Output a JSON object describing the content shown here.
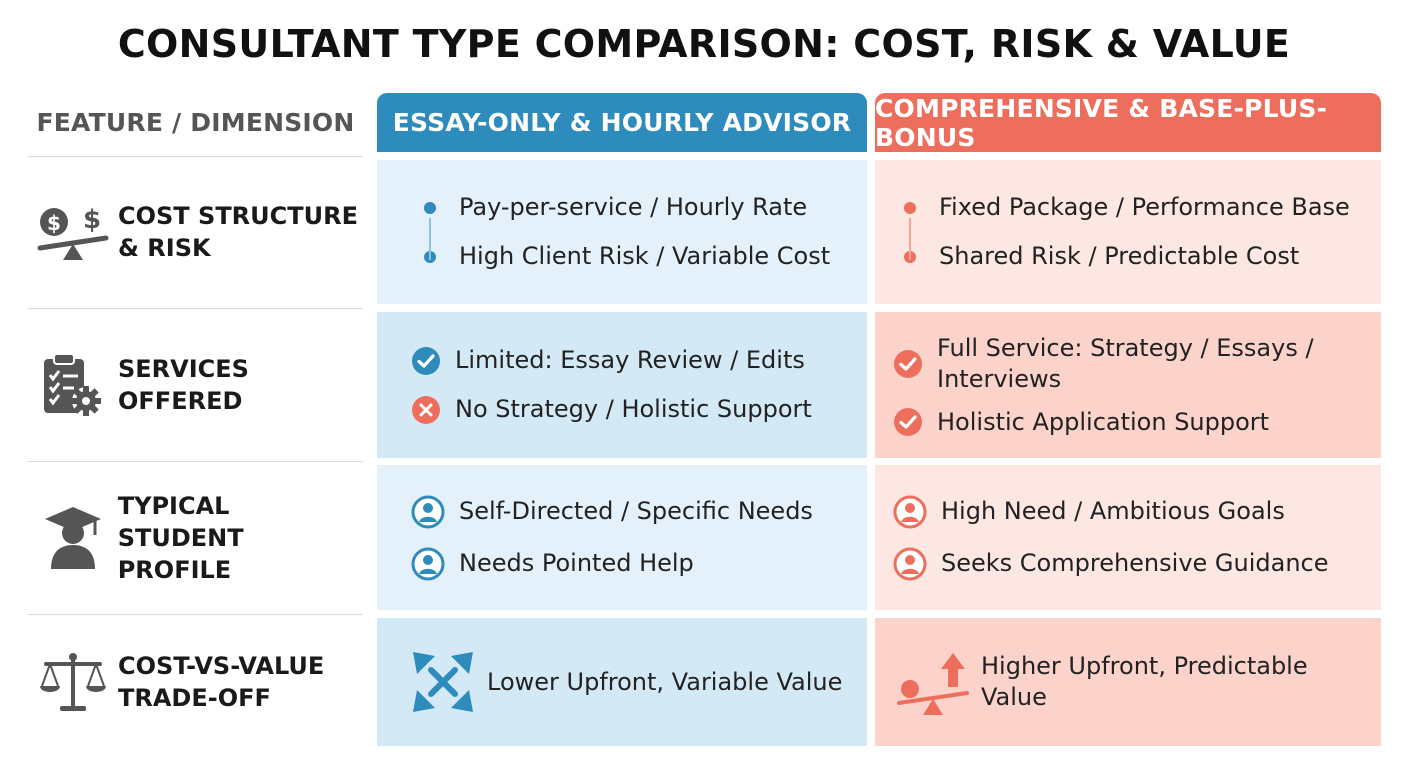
{
  "title": "CONSULTANT TYPE COMPARISON: COST, RISK & VALUE",
  "feature_header": "FEATURE / DIMENSION",
  "columns": {
    "left": "ESSAY-ONLY & HOURLY ADVISOR",
    "right": "COMPREHENSIVE & BASE-PLUS-BONUS"
  },
  "colors": {
    "blue": "#2d8cbc",
    "red": "#ee6e5d",
    "icon_gray": "#555555"
  },
  "rows": [
    {
      "label_line1": "COST STRUCTURE",
      "label_line2": "& RISK",
      "icon": "dollar-seesaw-icon",
      "left": [
        "Pay-per-service / Hourly Rate",
        "High Client Risk / Variable Cost"
      ],
      "right": [
        "Fixed Package / Performance Base",
        "Shared Risk / Predictable Cost"
      ]
    },
    {
      "label_line1": "SERVICES",
      "label_line2": "OFFERED",
      "icon": "clipboard-gear-icon",
      "left": [
        "Limited: Essay Review / Edits",
        "No Strategy / Holistic Support"
      ],
      "right": [
        "Full Service: Strategy / Essays /",
        "Interviews",
        "Holistic Application Support"
      ]
    },
    {
      "label_line1": "TYPICAL STUDENT",
      "label_line2": "PROFILE",
      "icon": "graduate-icon",
      "left": [
        "Self-Directed / Specific Needs",
        "Needs Pointed Help"
      ],
      "right": [
        "High Need / Ambitious Goals",
        "Seeks Comprehensive Guidance"
      ]
    },
    {
      "label_line1": "COST-VS-VALUE",
      "label_line2": "TRADE-OFF",
      "icon": "balance-scale-icon",
      "left": [
        "Lower Upfront, Variable Value"
      ],
      "right": [
        "Higher Upfront, Predictable Value"
      ]
    }
  ]
}
